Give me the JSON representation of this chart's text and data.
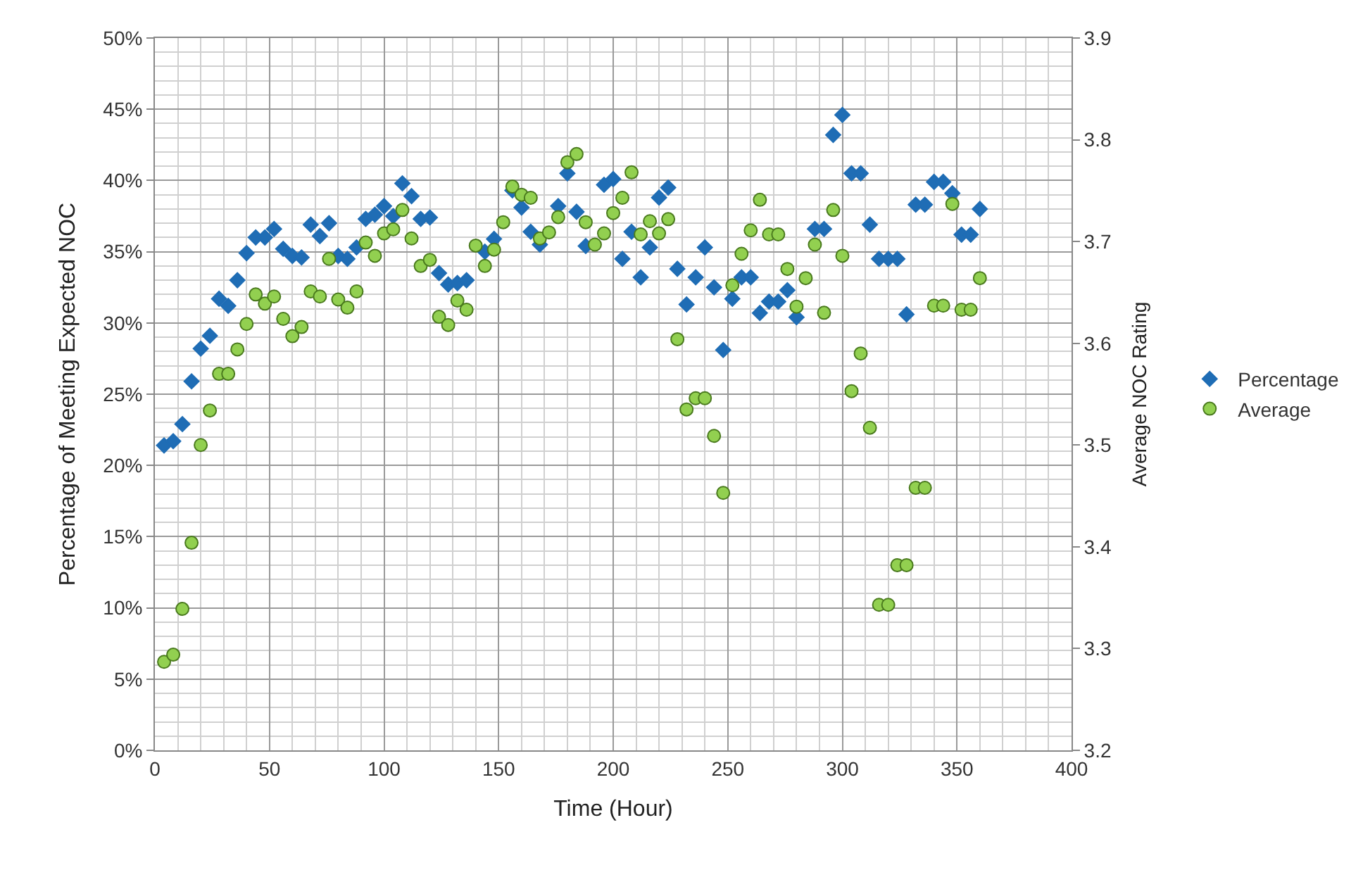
{
  "chart_data": {
    "type": "scatter",
    "xlabel": "Time (Hour)",
    "ylabel": "Percentage of Meeting Expected NOC",
    "y2label": "Average NOC Rating",
    "xlim": [
      0,
      400
    ],
    "xticks": [
      0,
      50,
      100,
      150,
      200,
      250,
      300,
      350,
      400
    ],
    "ylim": [
      0,
      50
    ],
    "yticks": [
      {
        "value": 0,
        "label": "0%"
      },
      {
        "value": 5,
        "label": "5%"
      },
      {
        "value": 10,
        "label": "10%"
      },
      {
        "value": 15,
        "label": "15%"
      },
      {
        "value": 20,
        "label": "20%"
      },
      {
        "value": 25,
        "label": "25%"
      },
      {
        "value": 30,
        "label": "30%"
      },
      {
        "value": 35,
        "label": "35%"
      },
      {
        "value": 40,
        "label": "40%"
      },
      {
        "value": 45,
        "label": "45%"
      },
      {
        "value": 50,
        "label": "50%"
      }
    ],
    "y2lim": [
      3.2,
      3.9
    ],
    "y2ticks": [
      3.2,
      3.3,
      3.4,
      3.5,
      3.6,
      3.7,
      3.8,
      3.9
    ],
    "grid": true,
    "legend": "right",
    "series": [
      {
        "name": "Percentage",
        "color": "#1f6db5",
        "marker": "diamond",
        "x": [
          4,
          8,
          12,
          16,
          20,
          24,
          28,
          32,
          36,
          40,
          44,
          48,
          52,
          56,
          60,
          64,
          68,
          72,
          76,
          80,
          84,
          88,
          92,
          96,
          100,
          104,
          108,
          112,
          116,
          120,
          124,
          128,
          132,
          136,
          144,
          148,
          156,
          160,
          164,
          168,
          176,
          180,
          184,
          188,
          196,
          200,
          204,
          208,
          212,
          216,
          220,
          224,
          228,
          232,
          236,
          240,
          244,
          248,
          252,
          256,
          260,
          264,
          268,
          272,
          276,
          280,
          288,
          292,
          296,
          300,
          304,
          308,
          312,
          316,
          320,
          324,
          328,
          332,
          336,
          340,
          344,
          348,
          352,
          356,
          360
        ],
        "values": [
          21.4,
          21.7,
          22.9,
          25.9,
          28.2,
          29.1,
          31.7,
          31.2,
          33.0,
          34.9,
          36.0,
          36.0,
          36.6,
          35.2,
          34.7,
          34.6,
          36.9,
          36.1,
          37.0,
          34.7,
          34.5,
          35.3,
          37.3,
          37.6,
          38.2,
          37.5,
          39.8,
          38.9,
          37.3,
          37.4,
          33.5,
          32.7,
          32.8,
          33.0,
          35.0,
          35.9,
          39.3,
          38.1,
          36.4,
          35.5,
          38.2,
          40.5,
          37.8,
          35.4,
          39.7,
          40.1,
          34.5,
          36.4,
          33.2,
          35.3,
          38.8,
          39.5,
          33.8,
          31.3,
          33.2,
          35.3,
          32.5,
          28.1,
          31.7,
          33.2,
          33.2,
          30.7,
          31.5,
          31.5,
          32.3,
          30.4,
          36.6,
          36.6,
          43.2,
          44.6,
          40.5,
          40.5,
          36.9,
          34.5,
          34.5,
          34.5,
          30.6,
          38.3,
          38.3,
          39.9,
          39.9,
          39.1,
          36.2,
          36.2,
          38.0
        ]
      },
      {
        "name": "Average",
        "color": "#92d050",
        "marker": "circle",
        "axis": "y2",
        "x": [
          4,
          8,
          12,
          16,
          20,
          24,
          28,
          32,
          36,
          40,
          44,
          48,
          52,
          56,
          60,
          64,
          68,
          72,
          76,
          80,
          84,
          88,
          92,
          96,
          100,
          104,
          108,
          112,
          116,
          120,
          124,
          128,
          132,
          136,
          140,
          144,
          148,
          152,
          156,
          160,
          164,
          168,
          172,
          176,
          180,
          184,
          188,
          192,
          196,
          200,
          204,
          208,
          212,
          216,
          220,
          224,
          228,
          232,
          236,
          240,
          244,
          248,
          252,
          256,
          260,
          264,
          268,
          272,
          276,
          280,
          284,
          288,
          292,
          296,
          300,
          304,
          308,
          312,
          316,
          320,
          324,
          328,
          332,
          336,
          340,
          344,
          348,
          352,
          356,
          360
        ],
        "values": [
          3.287,
          3.294,
          3.339,
          3.404,
          3.5,
          3.534,
          3.57,
          3.57,
          3.594,
          3.619,
          3.648,
          3.639,
          3.646,
          3.624,
          3.607,
          3.616,
          3.651,
          3.646,
          3.683,
          3.643,
          3.635,
          3.651,
          3.699,
          3.686,
          3.708,
          3.712,
          3.731,
          3.703,
          3.676,
          3.682,
          3.626,
          3.618,
          3.642,
          3.633,
          3.696,
          3.676,
          3.692,
          3.719,
          3.754,
          3.746,
          3.743,
          3.703,
          3.709,
          3.724,
          3.778,
          3.786,
          3.719,
          3.697,
          3.708,
          3.728,
          3.743,
          3.768,
          3.707,
          3.72,
          3.708,
          3.722,
          3.604,
          3.535,
          3.546,
          3.546,
          3.509,
          3.453,
          3.657,
          3.688,
          3.711,
          3.741,
          3.707,
          3.707,
          3.673,
          3.636,
          3.664,
          3.697,
          3.63,
          3.731,
          3.686,
          3.553,
          3.59,
          3.517,
          3.343,
          3.343,
          3.382,
          3.382,
          3.458,
          3.458,
          3.637,
          3.637,
          3.737,
          3.633,
          3.633,
          3.664
        ]
      }
    ]
  }
}
